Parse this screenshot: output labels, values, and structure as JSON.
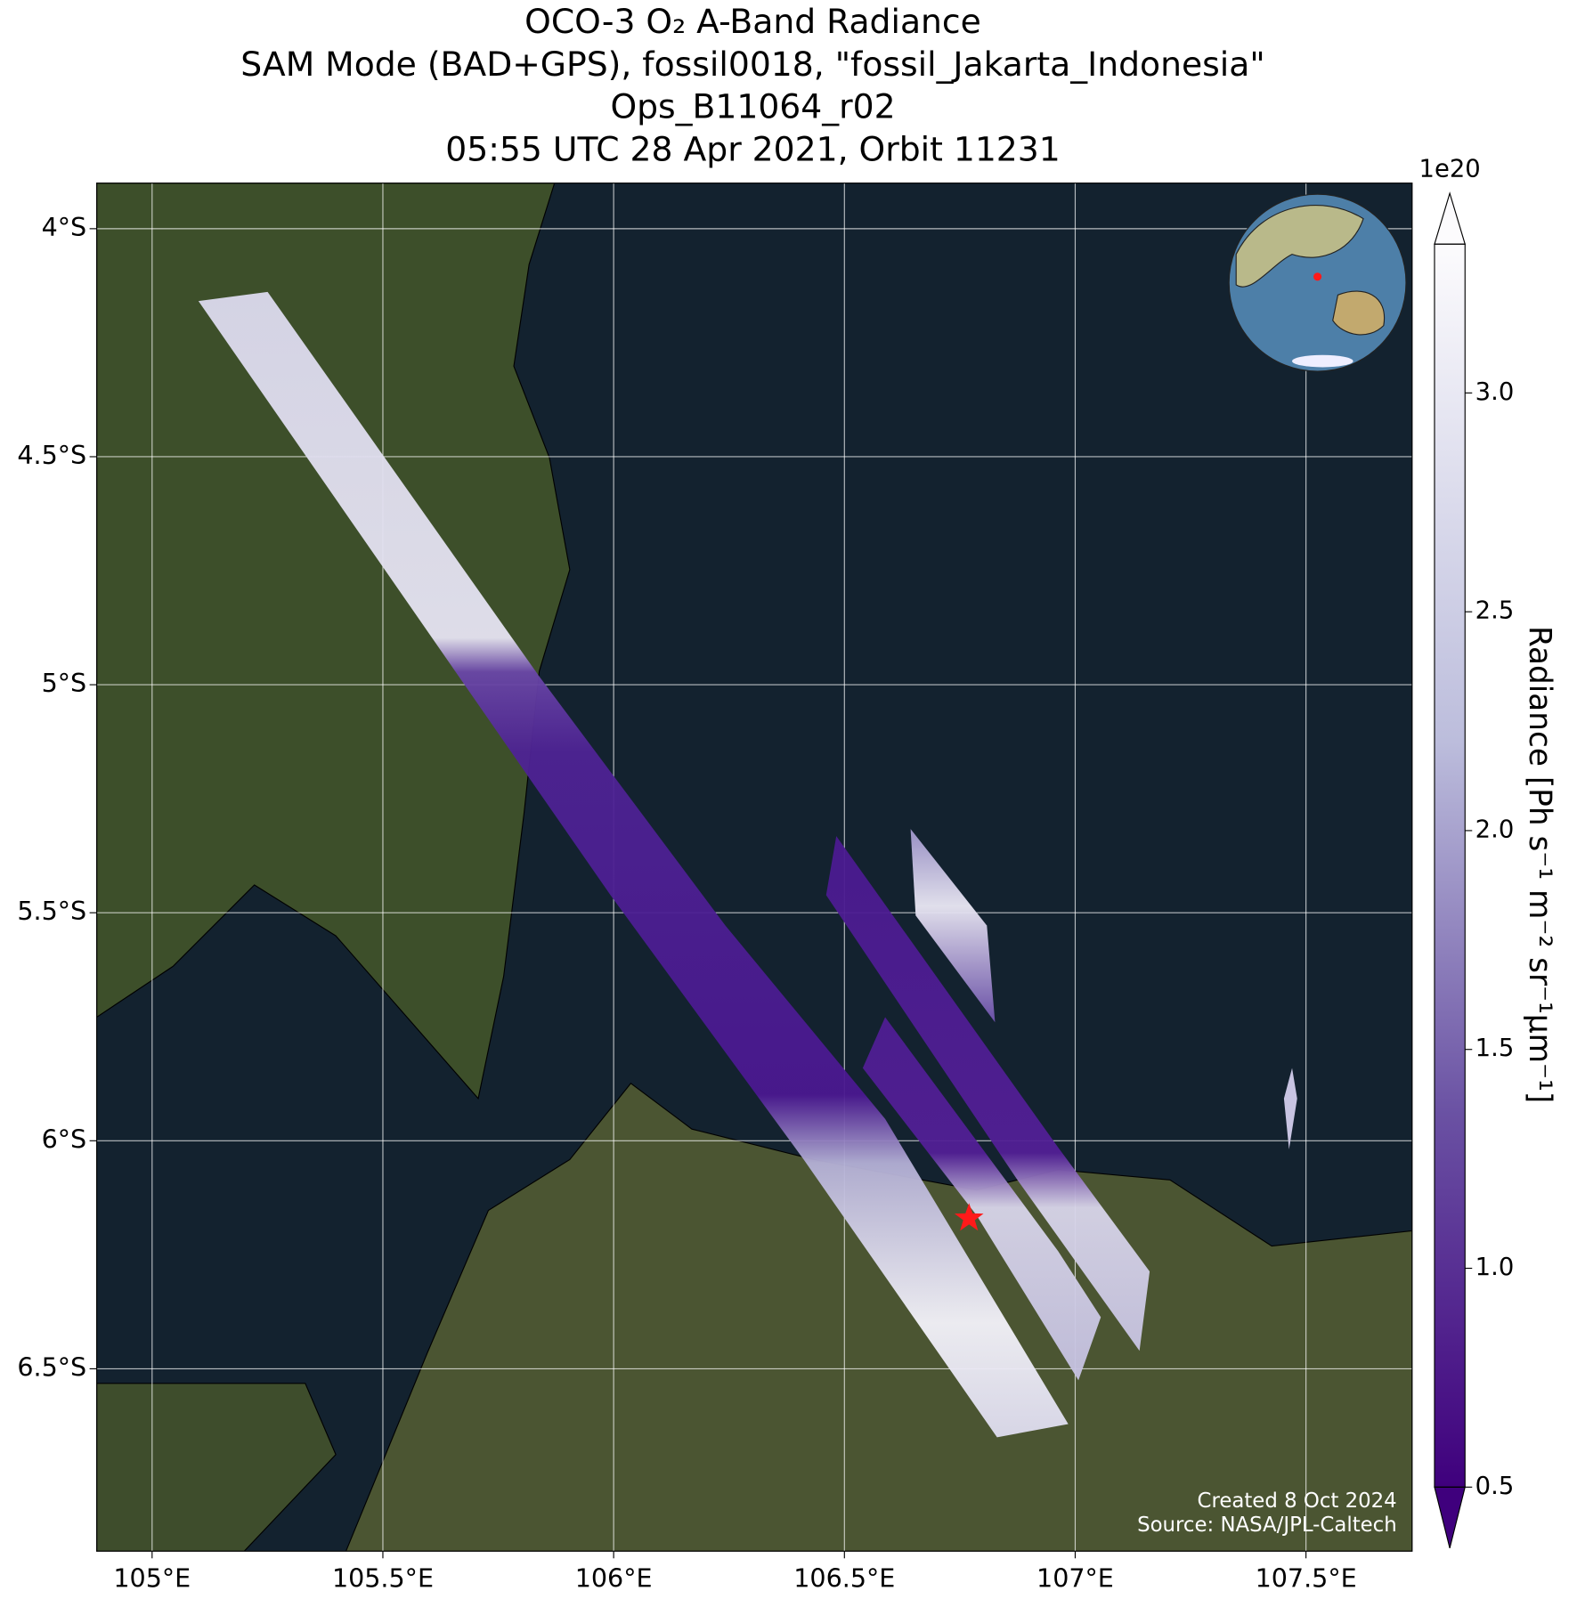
{
  "chart_data": {
    "type": "map",
    "title_lines": [
      "OCO-3 O₂ A-Band Radiance",
      "SAM Mode (BAD+GPS), fossil0018, \"fossil_Jakarta_Indonesia\"",
      "Ops_B11064_r02",
      "05:55 UTC 28 Apr 2021, Orbit 11231"
    ],
    "xlim": [
      104.88,
      107.73
    ],
    "ylim": [
      -6.9,
      -3.9
    ],
    "xticks": [
      {
        "value": 105,
        "label": "105°E"
      },
      {
        "value": 105.5,
        "label": "105.5°E"
      },
      {
        "value": 106,
        "label": "106°E"
      },
      {
        "value": 106.5,
        "label": "106.5°E"
      },
      {
        "value": 107,
        "label": "107°E"
      },
      {
        "value": 107.5,
        "label": "107.5°E"
      }
    ],
    "yticks": [
      {
        "value": -4,
        "label": "4°S"
      },
      {
        "value": -4.5,
        "label": "4.5°S"
      },
      {
        "value": -5,
        "label": "5°S"
      },
      {
        "value": -5.5,
        "label": "5.5°S"
      },
      {
        "value": -6,
        "label": "6°S"
      },
      {
        "value": -6.5,
        "label": "6.5°S"
      }
    ],
    "grid": true,
    "marker": {
      "lon": 106.77,
      "lat": -6.17,
      "color": "#ff1a1a"
    },
    "colorbar": {
      "label": "Radiance [Ph s⁻¹ m⁻² sr⁻¹μm⁻¹]",
      "multiplier": "1e20",
      "clim": [
        0.5,
        3.34
      ],
      "extend": "both",
      "ticks": [
        0.5,
        {
          "value": 1,
          "label": "1.0"
        },
        1.5,
        {
          "value": 2,
          "label": "2.0"
        },
        2.5,
        {
          "value": 3,
          "label": "3.0"
        }
      ]
    },
    "credits": [
      "Created 8 Oct 2024",
      "Source: NASA/JPL-Caltech"
    ]
  }
}
